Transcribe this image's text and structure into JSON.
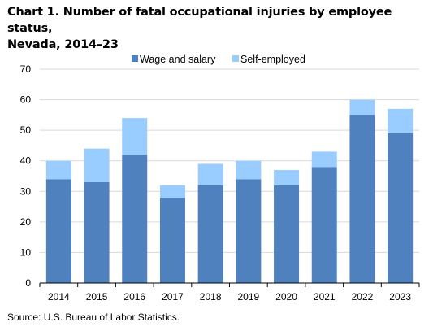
{
  "title_line1": "Chart 1. Number of fatal occupational injuries by employee status,",
  "title_line2": "Nevada, 2014–23",
  "source": "Source: U.S. Bureau of Labor Statistics.",
  "chart_data": {
    "type": "bar",
    "stacked": true,
    "categories": [
      "2014",
      "2015",
      "2016",
      "2017",
      "2018",
      "2019",
      "2020",
      "2021",
      "2022",
      "2023"
    ],
    "series": [
      {
        "name": "Wage and salary",
        "color": "#4e81bd",
        "values": [
          34,
          33,
          42,
          28,
          32,
          34,
          32,
          38,
          55,
          49
        ]
      },
      {
        "name": "Self-employed",
        "color": "#99ccff",
        "values": [
          6,
          11,
          12,
          4,
          7,
          6,
          5,
          5,
          5,
          8
        ]
      }
    ],
    "yticks": [
      0,
      10,
      20,
      30,
      40,
      50,
      60,
      70
    ],
    "ylim": [
      0,
      70
    ],
    "grid": true,
    "legend": "top-center"
  }
}
